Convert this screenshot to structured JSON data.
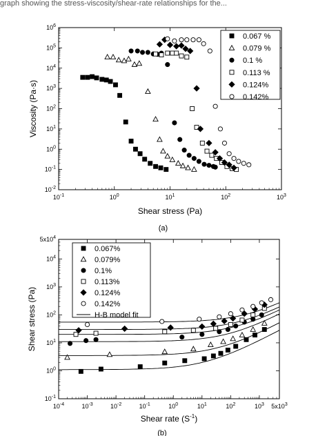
{
  "caption_top": "graph showing the stress-viscosity/shear-rate relationships for the...",
  "chart_data": [
    {
      "type": "scatter",
      "panel_label": "(a)",
      "xlabel": "Shear stress (Pa)",
      "ylabel": "Viscosity (Pa·s)",
      "xscale": "log",
      "yscale": "log",
      "xlim": [
        0.1,
        1000
      ],
      "ylim": [
        0.01,
        1000000
      ],
      "xticks": [
        "10-1",
        "100",
        "101",
        "102",
        "103"
      ],
      "yticks": [
        "10-2",
        "10-1",
        "100",
        "101",
        "102",
        "103",
        "104",
        "105",
        "106"
      ],
      "legend_position": "top-right",
      "series": [
        {
          "name": "0.067 %",
          "marker": "square-filled",
          "points": [
            [
              0.27,
              3500
            ],
            [
              0.33,
              3500
            ],
            [
              0.4,
              3800
            ],
            [
              0.48,
              3300
            ],
            [
              0.6,
              2800
            ],
            [
              0.72,
              2600
            ],
            [
              0.85,
              2200
            ],
            [
              1.05,
              1500
            ],
            [
              1.25,
              450
            ],
            [
              1.6,
              22
            ],
            [
              2.0,
              2.5
            ],
            [
              2.4,
              1.0
            ],
            [
              2.9,
              0.6
            ],
            [
              3.5,
              0.32
            ],
            [
              4.4,
              0.2
            ],
            [
              5.5,
              0.14
            ],
            [
              6.8,
              0.12
            ],
            [
              8.5,
              0.1
            ]
          ]
        },
        {
          "name": "0.079 %",
          "marker": "triangle-open",
          "points": [
            [
              0.75,
              35000
            ],
            [
              0.95,
              35000
            ],
            [
              1.2,
              25000
            ],
            [
              1.5,
              23000
            ],
            [
              1.8,
              28000
            ],
            [
              2.3,
              15000
            ],
            [
              2.8,
              17000
            ],
            [
              4.0,
              700
            ],
            [
              5.5,
              30
            ],
            [
              6.5,
              3
            ],
            [
              7.5,
              0.8
            ],
            [
              9,
              0.45
            ],
            [
              11,
              0.3
            ],
            [
              14,
              0.2
            ],
            [
              17,
              0.15
            ],
            [
              21,
              0.12
            ],
            [
              27,
              0.1
            ]
          ]
        },
        {
          "name": "0.1 %",
          "marker": "circle-filled",
          "points": [
            [
              2.0,
              70000
            ],
            [
              2.6,
              70000
            ],
            [
              3.2,
              60000
            ],
            [
              4.0,
              60000
            ],
            [
              5.0,
              50000
            ],
            [
              6.0,
              48000
            ],
            [
              7.0,
              55000
            ],
            [
              9.0,
              15000
            ],
            [
              12,
              20
            ],
            [
              15,
              3
            ],
            [
              18,
              0.9
            ],
            [
              22,
              0.5
            ],
            [
              27,
              0.35
            ],
            [
              33,
              0.25
            ],
            [
              41,
              0.18
            ],
            [
              50,
              0.16
            ],
            [
              60,
              0.14
            ],
            [
              65,
              0.13
            ]
          ]
        },
        {
          "name": "0.113 %",
          "marker": "square-open",
          "points": [
            [
              5.5,
              50000
            ],
            [
              7.0,
              45000
            ],
            [
              9.0,
              55000
            ],
            [
              11,
              55000
            ],
            [
              13,
              55000
            ],
            [
              16,
              40000
            ],
            [
              20,
              35000
            ],
            [
              25,
              100
            ],
            [
              30,
              12
            ],
            [
              38,
              2.0
            ],
            [
              46,
              0.8
            ],
            [
              56,
              0.5
            ],
            [
              68,
              0.35
            ],
            [
              85,
              0.22
            ],
            [
              105,
              0.14
            ],
            [
              130,
              0.11
            ],
            [
              155,
              0.1
            ]
          ]
        },
        {
          "name": "0.124%",
          "marker": "diamond-filled",
          "points": [
            [
              6.5,
              150000
            ],
            [
              8.0,
              250000
            ],
            [
              10,
              140000
            ],
            [
              13,
              120000
            ],
            [
              16,
              130000
            ],
            [
              19,
              90000
            ],
            [
              23,
              70000
            ],
            [
              30,
              1000
            ],
            [
              35,
              10
            ],
            [
              50,
              2.0
            ],
            [
              65,
              0.7
            ],
            [
              78,
              0.35
            ],
            [
              95,
              0.22
            ],
            [
              115,
              0.17
            ],
            [
              140,
              0.12
            ]
          ]
        },
        {
          "name": "0.142%",
          "marker": "circle-open",
          "points": [
            [
              9.0,
              280000
            ],
            [
              12,
              220000
            ],
            [
              16,
              250000
            ],
            [
              20,
              250000
            ],
            [
              26,
              250000
            ],
            [
              33,
              250000
            ],
            [
              40,
              160000
            ],
            [
              52,
              70000
            ],
            [
              65,
              130
            ],
            [
              80,
              10
            ],
            [
              95,
              2.0
            ],
            [
              115,
              0.6
            ],
            [
              140,
              0.35
            ],
            [
              170,
              0.25
            ],
            [
              210,
              0.2
            ],
            [
              260,
              0.17
            ]
          ]
        }
      ]
    },
    {
      "type": "scatter",
      "panel_label": "(b)",
      "xlabel": "Shear rate (S-1)",
      "ylabel": "Shear stress (Pa)",
      "xscale": "log",
      "yscale": "log",
      "xlim": [
        0.0001,
        5000
      ],
      "ylim": [
        0.1,
        50000
      ],
      "xticks": [
        "10-4",
        "10-3",
        "10-2",
        "10-1",
        "100",
        "101",
        "102",
        "103",
        "5x103"
      ],
      "yticks": [
        "10-1",
        "100",
        "101",
        "102",
        "103",
        "104",
        "5x104"
      ],
      "legend_position": "top-left",
      "fit_label": "H-B model fit",
      "series": [
        {
          "name": "0.067%",
          "marker": "square-filled",
          "fit": {
            "ty": 1.1,
            "k": 0.25,
            "n": 0.55
          },
          "points": [
            [
              0.0006,
              0.95
            ],
            [
              0.003,
              1.15
            ],
            [
              0.07,
              1.4
            ],
            [
              0.5,
              1.9
            ],
            [
              2.5,
              2.3
            ],
            [
              12,
              2.7
            ],
            [
              25,
              3.4
            ],
            [
              45,
              4.2
            ],
            [
              80,
              5.5
            ],
            [
              150,
              7.5
            ],
            [
              350,
              13
            ],
            [
              700,
              19
            ],
            [
              1500,
              30
            ]
          ]
        },
        {
          "name": "0.079%",
          "marker": "triangle-open",
          "fit": {
            "ty": 3.5,
            "k": 0.45,
            "n": 0.55
          },
          "points": [
            [
              0.0002,
              3.0
            ],
            [
              0.006,
              3.8
            ],
            [
              0.5,
              4.8
            ],
            [
              5,
              6.0
            ],
            [
              20,
              8.5
            ],
            [
              55,
              11
            ],
            [
              120,
              14
            ],
            [
              250,
              19
            ],
            [
              600,
              30
            ],
            [
              1500,
              50
            ]
          ]
        },
        {
          "name": "0.1%",
          "marker": "circle-filled",
          "fit": {
            "ty": 11,
            "k": 0.9,
            "n": 0.55
          },
          "points": [
            [
              0.00025,
              9.5
            ],
            [
              0.0009,
              12
            ],
            [
              0.002,
              13
            ],
            [
              2,
              16
            ],
            [
              10,
              20
            ],
            [
              40,
              25
            ],
            [
              80,
              30
            ],
            [
              150,
              40
            ],
            [
              300,
              55
            ],
            [
              600,
              70
            ],
            [
              1200,
              100
            ]
          ]
        },
        {
          "name": "0.113%",
          "marker": "square-open",
          "fit": {
            "ty": 20,
            "k": 1.2,
            "n": 0.55
          },
          "points": [
            [
              0.0004,
              20
            ],
            [
              0.002,
              22
            ],
            [
              0.5,
              25
            ],
            [
              5,
              28
            ],
            [
              30,
              33
            ],
            [
              100,
              45
            ],
            [
              250,
              65
            ],
            [
              600,
              100
            ],
            [
              1500,
              170
            ]
          ]
        },
        {
          "name": "0.124%",
          "marker": "diamond-filled",
          "fit": {
            "ty": 30,
            "k": 1.5,
            "n": 0.55
          },
          "points": [
            [
              0.0005,
              28
            ],
            [
              0.02,
              32
            ],
            [
              0.8,
              35
            ],
            [
              10,
              38
            ],
            [
              25,
              48
            ],
            [
              60,
              60
            ],
            [
              120,
              75
            ],
            [
              300,
              110
            ],
            [
              700,
              160
            ],
            [
              1500,
              230
            ]
          ]
        },
        {
          "name": "0.142%",
          "marker": "circle-open",
          "fit": {
            "ty": 55,
            "k": 2.0,
            "n": 0.55
          },
          "points": [
            [
              0.001,
              45
            ],
            [
              0.4,
              58
            ],
            [
              8,
              70
            ],
            [
              40,
              85
            ],
            [
              100,
              110
            ],
            [
              250,
              150
            ],
            [
              600,
              200
            ],
            [
              1200,
              270
            ],
            [
              2500,
              350
            ]
          ]
        }
      ]
    }
  ]
}
